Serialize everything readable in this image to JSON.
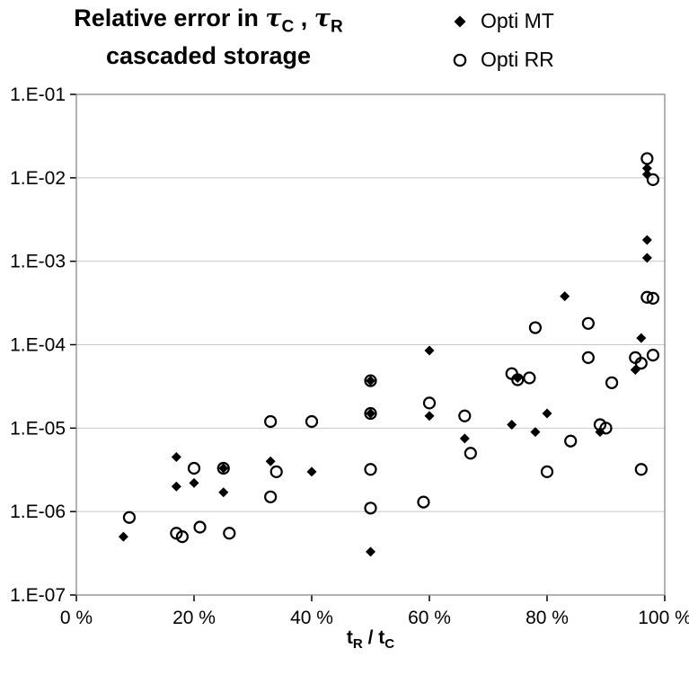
{
  "title": {
    "prefix": "Relative error in ",
    "tau1": "τ",
    "sub1": "C",
    "separator": " , ",
    "tau2": "τ",
    "sub2": "R",
    "line2": "cascaded storage"
  },
  "legend": {
    "items": [
      {
        "label": "Opti MT",
        "marker": "diamond"
      },
      {
        "label": "Opti RR",
        "marker": "circle"
      }
    ]
  },
  "x_axis_label": {
    "t1": "t",
    "sub1": "R",
    "mid": " / t",
    "sub2": "C"
  },
  "chart_data": {
    "type": "scatter",
    "title": "Relative error in τC , τR cascaded storage",
    "legend_position": "top-right",
    "grid": "horizontal",
    "x_axis": {
      "label": "tR / tC",
      "min": 0,
      "max": 100,
      "tick_labels": [
        "0 %",
        "20 %",
        "40 %",
        "60 %",
        "80 %",
        "100 %"
      ]
    },
    "y_axis": {
      "scale": "log",
      "min": 1e-07,
      "max": 0.1,
      "tick_labels": [
        "1.E-01",
        "1.E-02",
        "1.E-03",
        "1.E-04",
        "1.E-05",
        "1.E-06",
        "1.E-07"
      ]
    },
    "series": [
      {
        "name": "Opti MT",
        "marker": "diamond",
        "color": "#000000",
        "points": [
          [
            8,
            5e-07
          ],
          [
            17,
            4.5e-06
          ],
          [
            17,
            2e-06
          ],
          [
            20,
            2.2e-06
          ],
          [
            25,
            3.3e-06
          ],
          [
            25,
            1.7e-06
          ],
          [
            33,
            4e-06
          ],
          [
            40,
            3e-06
          ],
          [
            50,
            3.7e-05
          ],
          [
            50,
            1.5e-05
          ],
          [
            50,
            3.3e-07
          ],
          [
            60,
            8.5e-05
          ],
          [
            60,
            1.4e-05
          ],
          [
            66,
            7.5e-06
          ],
          [
            74,
            1.1e-05
          ],
          [
            75,
            4e-05
          ],
          [
            78,
            9e-06
          ],
          [
            80,
            1.5e-05
          ],
          [
            83,
            0.00038
          ],
          [
            89,
            9e-06
          ],
          [
            95,
            5e-05
          ],
          [
            96,
            0.00012
          ],
          [
            97,
            0.013
          ],
          [
            97,
            0.011
          ],
          [
            97,
            0.0018
          ],
          [
            97,
            0.0011
          ]
        ]
      },
      {
        "name": "Opti RR",
        "marker": "circle",
        "color": "#000000",
        "points": [
          [
            9,
            8.5e-07
          ],
          [
            17,
            5.5e-07
          ],
          [
            18,
            5e-07
          ],
          [
            20,
            3.3e-06
          ],
          [
            21,
            6.5e-07
          ],
          [
            25,
            3.3e-06
          ],
          [
            26,
            5.5e-07
          ],
          [
            33,
            1.2e-05
          ],
          [
            33,
            1.5e-06
          ],
          [
            34,
            3e-06
          ],
          [
            40,
            1.2e-05
          ],
          [
            50,
            3.7e-05
          ],
          [
            50,
            1.5e-05
          ],
          [
            50,
            3.2e-06
          ],
          [
            50,
            1.1e-06
          ],
          [
            59,
            1.3e-06
          ],
          [
            60,
            2e-05
          ],
          [
            66,
            1.4e-05
          ],
          [
            67,
            5e-06
          ],
          [
            74,
            4.5e-05
          ],
          [
            75,
            3.8e-05
          ],
          [
            77,
            4e-05
          ],
          [
            78,
            0.00016
          ],
          [
            80,
            3e-06
          ],
          [
            84,
            7e-06
          ],
          [
            87,
            0.00018
          ],
          [
            87,
            7e-05
          ],
          [
            89,
            1.1e-05
          ],
          [
            90,
            1e-05
          ],
          [
            91,
            3.5e-05
          ],
          [
            95,
            7e-05
          ],
          [
            96,
            6e-05
          ],
          [
            96,
            3.2e-06
          ],
          [
            97,
            0.017
          ],
          [
            98,
            0.0095
          ],
          [
            97,
            0.00037
          ],
          [
            98,
            0.00036
          ],
          [
            98,
            7.5e-05
          ]
        ]
      }
    ]
  }
}
